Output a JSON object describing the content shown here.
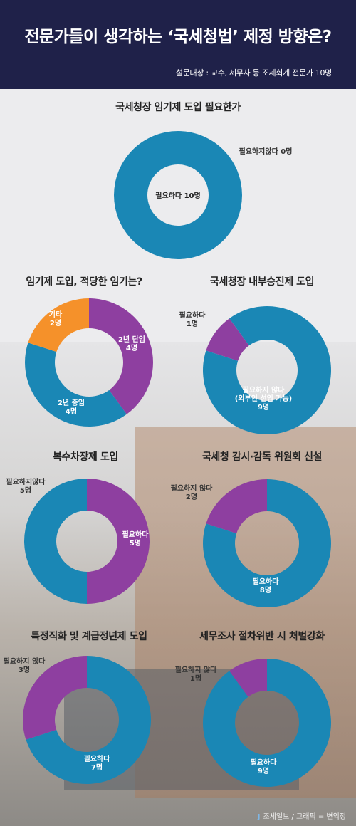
{
  "header": {
    "title": "전문가들이 생각하는 ‘국세청법’ 제정 방향은?",
    "subtitle": "설문대상 : 교수, 세무사 등 조세회계 전문가 10명"
  },
  "colors": {
    "blue": "#1a87b5",
    "purple": "#8e3fa0",
    "orange": "#f5912a",
    "header_bg": "#1f2149"
  },
  "chart_data": [
    {
      "type": "pie",
      "title": "국세청장 임기제 도입 필요한가",
      "series": [
        {
          "name": "필요하다",
          "value": 10,
          "labels": [
            "필요하다 10명"
          ],
          "color": "#1a87b5"
        },
        {
          "name": "필요하지않다",
          "value": 0,
          "labels": [
            "필요하지않다 0명"
          ],
          "color": "#8e3fa0"
        }
      ]
    },
    {
      "type": "pie",
      "title": "임기제 도입, 적당한 임기는?",
      "series": [
        {
          "name": "2년 단임",
          "value": 4,
          "labels": [
            "2년 단임",
            "4명"
          ],
          "color": "#8e3fa0"
        },
        {
          "name": "2년 중임",
          "value": 4,
          "labels": [
            "2년 중임",
            "4명"
          ],
          "color": "#1a87b5"
        },
        {
          "name": "기타",
          "value": 2,
          "labels": [
            "기타",
            "2명"
          ],
          "color": "#f5912a"
        }
      ]
    },
    {
      "type": "pie",
      "title": "국세청장 내부승진제 도입",
      "series": [
        {
          "name": "필요하지 않다 (외부인 선임 가능)",
          "value": 9,
          "labels": [
            "필요하지 않다",
            "(외부인 선임 가능)",
            "9명"
          ],
          "color": "#1a87b5"
        },
        {
          "name": "필요하다",
          "value": 1,
          "labels": [
            "필요하다",
            "1명"
          ],
          "color": "#8e3fa0"
        }
      ]
    },
    {
      "type": "pie",
      "title": "복수차장제 도입",
      "series": [
        {
          "name": "필요하다",
          "value": 5,
          "labels": [
            "필요하다",
            "5명"
          ],
          "color": "#8e3fa0"
        },
        {
          "name": "필요하지않다",
          "value": 5,
          "labels": [
            "필요하지않다",
            "5명"
          ],
          "color": "#1a87b5"
        }
      ]
    },
    {
      "type": "pie",
      "title": "국세청 감시·감독 위원회 신설",
      "series": [
        {
          "name": "필요하다",
          "value": 8,
          "labels": [
            "필요하다",
            "8명"
          ],
          "color": "#1a87b5"
        },
        {
          "name": "필요하지 않다",
          "value": 2,
          "labels": [
            "필요하지 않다",
            "2명"
          ],
          "color": "#8e3fa0"
        }
      ]
    },
    {
      "type": "pie",
      "title": "특정직화 및 계급정년제 도입",
      "series": [
        {
          "name": "필요하다",
          "value": 7,
          "labels": [
            "필요하다",
            "7명"
          ],
          "color": "#1a87b5"
        },
        {
          "name": "필요하지 않다",
          "value": 3,
          "labels": [
            "필요하지 않다",
            "3명"
          ],
          "color": "#8e3fa0"
        }
      ]
    },
    {
      "type": "pie",
      "title": "세무조사 절차위반 시 처벌강화",
      "series": [
        {
          "name": "필요하다",
          "value": 9,
          "labels": [
            "필요하다",
            "9명"
          ],
          "color": "#1a87b5"
        },
        {
          "name": "필요하지 않다",
          "value": 1,
          "labels": [
            "필요하지 않다",
            "1명"
          ],
          "color": "#8e3fa0"
        }
      ]
    }
  ],
  "credit": {
    "logo": "J",
    "text": "조세일보 / 그래픽 = 변익정"
  }
}
